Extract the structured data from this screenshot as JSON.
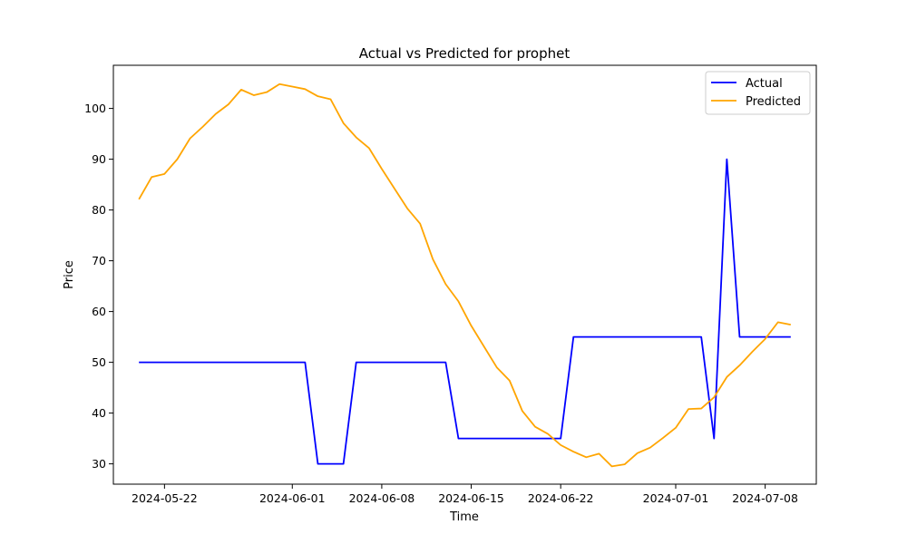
{
  "chart_data": {
    "type": "line",
    "title": "Actual vs Predicted for prophet",
    "xlabel": "Time",
    "ylabel": "Price",
    "x_start_date": "2024-05-20",
    "xlim": [
      "2024-05-18",
      "2024-07-12"
    ],
    "ylim": [
      26,
      108.5
    ],
    "x_ticks": [
      "2024-05-22",
      "2024-06-01",
      "2024-06-08",
      "2024-06-15",
      "2024-06-22",
      "2024-07-01",
      "2024-07-08"
    ],
    "y_ticks": [
      30,
      40,
      50,
      60,
      70,
      80,
      90,
      100
    ],
    "grid": false,
    "legend": "top-right",
    "x_dates": [
      "2024-05-20",
      "2024-05-21",
      "2024-05-22",
      "2024-05-23",
      "2024-05-24",
      "2024-05-25",
      "2024-05-26",
      "2024-05-27",
      "2024-05-28",
      "2024-05-29",
      "2024-05-30",
      "2024-05-31",
      "2024-06-01",
      "2024-06-02",
      "2024-06-03",
      "2024-06-04",
      "2024-06-05",
      "2024-06-06",
      "2024-06-07",
      "2024-06-08",
      "2024-06-09",
      "2024-06-10",
      "2024-06-11",
      "2024-06-12",
      "2024-06-13",
      "2024-06-14",
      "2024-06-15",
      "2024-06-16",
      "2024-06-17",
      "2024-06-18",
      "2024-06-19",
      "2024-06-20",
      "2024-06-21",
      "2024-06-22",
      "2024-06-23",
      "2024-06-24",
      "2024-06-25",
      "2024-06-26",
      "2024-06-27",
      "2024-06-28",
      "2024-06-29",
      "2024-06-30",
      "2024-07-01",
      "2024-07-02",
      "2024-07-03",
      "2024-07-04",
      "2024-07-05",
      "2024-07-06",
      "2024-07-07",
      "2024-07-08",
      "2024-07-09",
      "2024-07-10"
    ],
    "series": [
      {
        "name": "Actual",
        "color": "#0000ff",
        "values": [
          50,
          50,
          50,
          50,
          50,
          50,
          50,
          50,
          50,
          50,
          50,
          50,
          50,
          50,
          30,
          30,
          30,
          50,
          50,
          50,
          50,
          50,
          50,
          50,
          50,
          35,
          35,
          35,
          35,
          35,
          35,
          35,
          35,
          35,
          55,
          55,
          55,
          55,
          55,
          55,
          55,
          55,
          55,
          55,
          55,
          35,
          90,
          55,
          55,
          55,
          55,
          55
        ]
      },
      {
        "name": "Predicted",
        "color": "#ffa500",
        "values": [
          82.1,
          86.5,
          87.1,
          90,
          94.1,
          96.4,
          98.9,
          100.8,
          103.7,
          102.6,
          103.2,
          104.8,
          104.3,
          103.8,
          102.4,
          101.8,
          97.1,
          94.3,
          92.2,
          88.1,
          84.2,
          80.3,
          77.3,
          70.3,
          65.4,
          62,
          57.2,
          53.1,
          49,
          46.4,
          40.4,
          37.3,
          35.9,
          33.7,
          32.4,
          31.3,
          32,
          29.5,
          29.9,
          32.1,
          33.2,
          35.1,
          37.1,
          40.8,
          40.9,
          43.1,
          47.1,
          49.4,
          52.1,
          54.6,
          57.9,
          57.4
        ]
      }
    ]
  }
}
